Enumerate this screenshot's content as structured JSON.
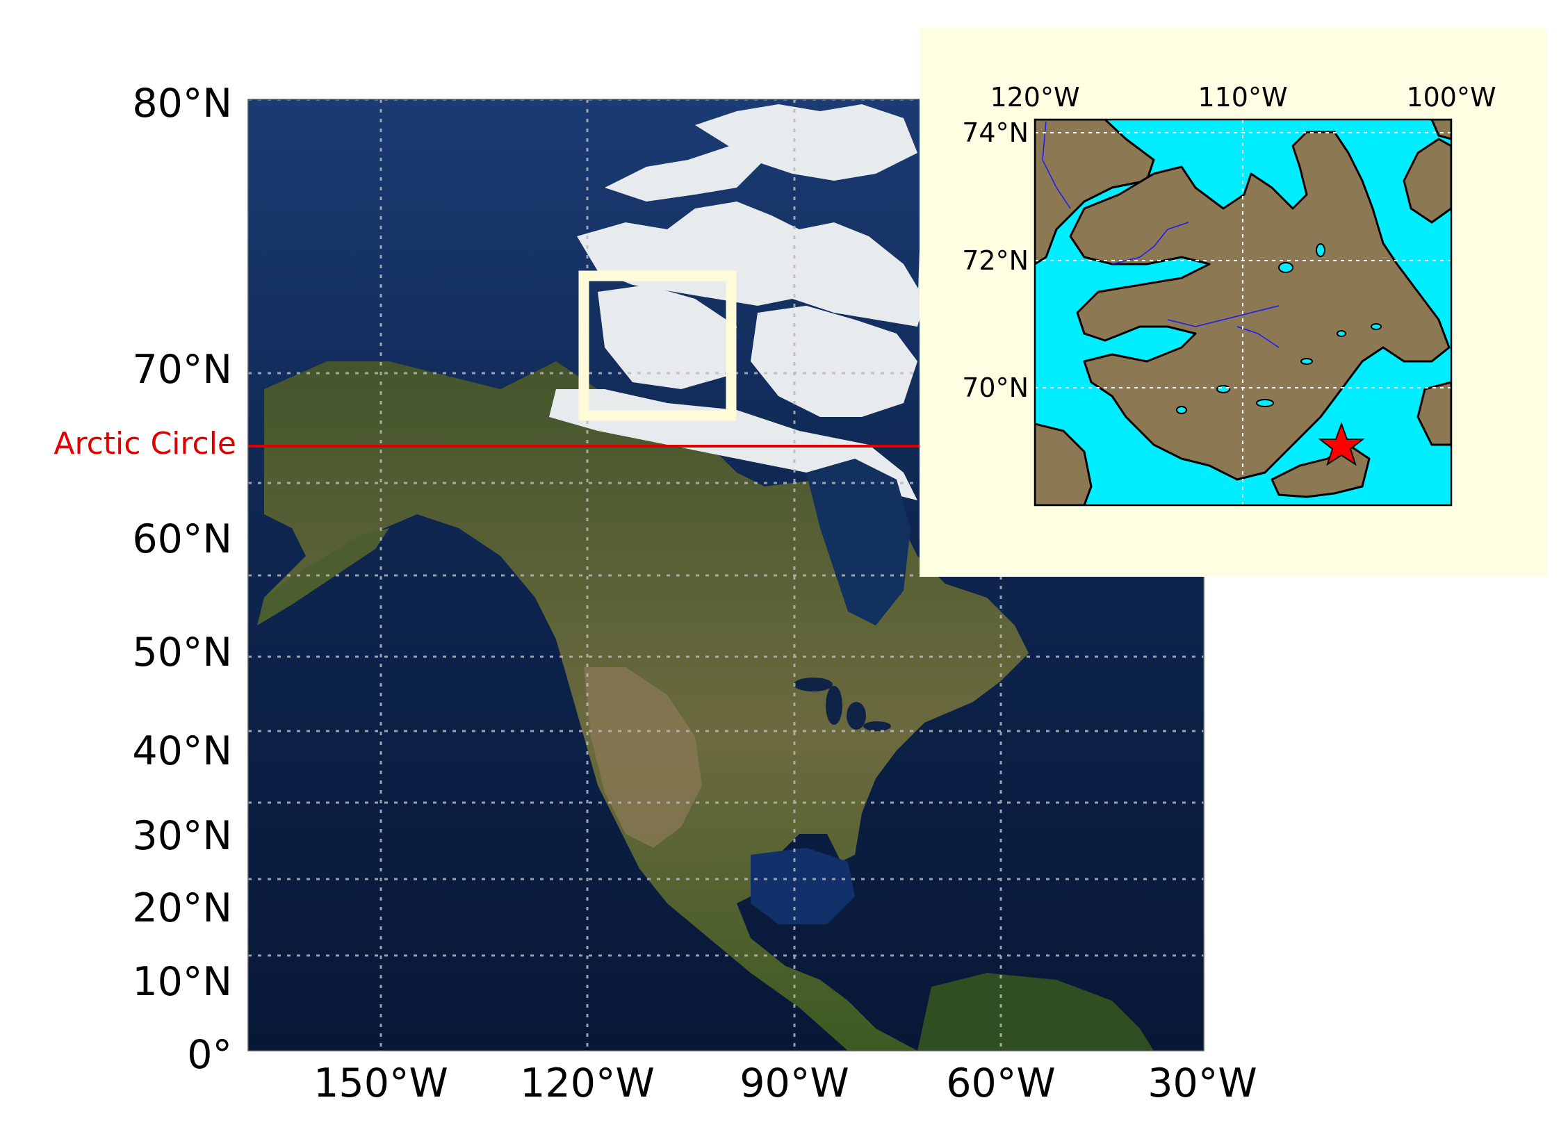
{
  "main_map": {
    "lat_labels": [
      "80°N",
      "70°N",
      "60°N",
      "50°N",
      "40°N",
      "30°N",
      "20°N",
      "10°N",
      "0°"
    ],
    "lon_labels": [
      "150°W",
      "120°W",
      "90°W",
      "60°W",
      "30°W"
    ],
    "arctic_circle_label": "Arctic Circle",
    "arctic_circle_color": "#e00000",
    "highlight_box_color": "#fffbd9",
    "gridline_color": "#b8b8b8",
    "ocean_color": "#0f2a55",
    "land_color": "#4a5a30",
    "ice_color": "#e9ecee"
  },
  "inset_map": {
    "lon_labels": [
      "120°W",
      "110°W",
      "100°W"
    ],
    "lat_labels": [
      "74°N",
      "72°N",
      "70°N"
    ],
    "background_color": "#fefee2",
    "water_color": "#00eeff",
    "land_color": "#8c7853",
    "river_color": "#1a1aff",
    "marker": "red-star",
    "marker_color": "#ff0000"
  }
}
